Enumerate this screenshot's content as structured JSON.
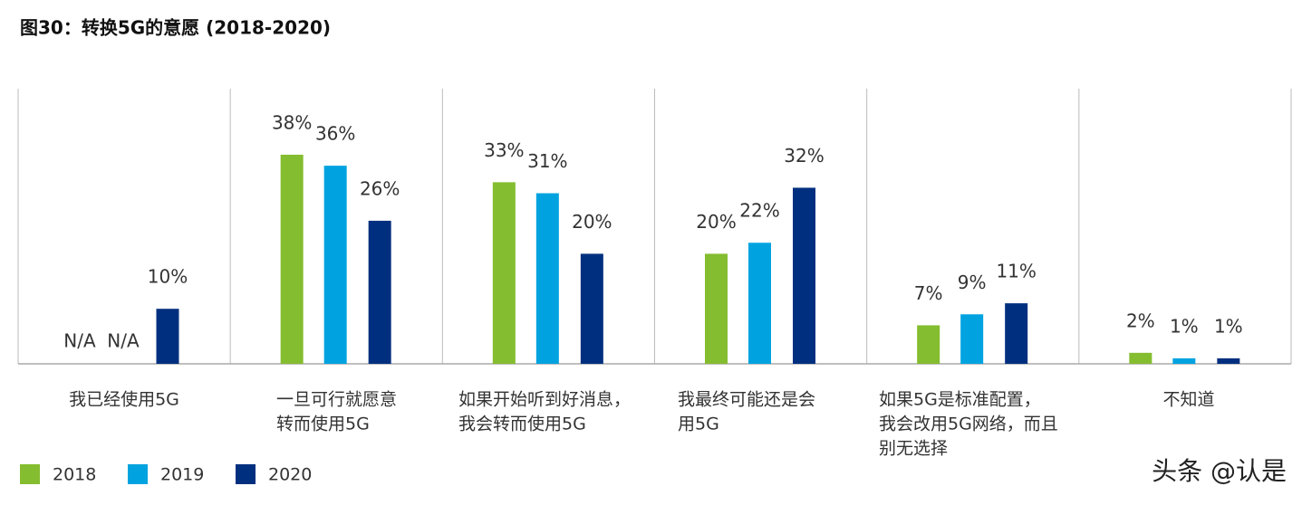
{
  "chart_data": {
    "type": "bar",
    "title": "图30：转换5G的意愿 (2018-2020)",
    "categories": [
      [
        "我已经使用5G"
      ],
      [
        "一旦可行就愿意",
        "转而使用5G"
      ],
      [
        "如果开始听到好消息，",
        "我会转而使用5G"
      ],
      [
        "我最终可能还是会",
        "用5G"
      ],
      [
        "如果5G是标准配置，",
        "我会改用5G网络，而且",
        "别无选择"
      ],
      [
        "不知道"
      ]
    ],
    "series": [
      {
        "name": "2018",
        "color": "#84bd2f",
        "values": [
          null,
          38,
          33,
          20,
          7,
          2
        ],
        "value_labels": [
          "N/A",
          "38%",
          "33%",
          "20%",
          "7%",
          "2%"
        ]
      },
      {
        "name": "2019",
        "color": "#00a3e0",
        "values": [
          null,
          36,
          31,
          22,
          9,
          1
        ],
        "value_labels": [
          "N/A",
          "36%",
          "31%",
          "22%",
          "9%",
          "1%"
        ]
      },
      {
        "name": "2020",
        "color": "#012f7f",
        "values": [
          10,
          26,
          20,
          32,
          11,
          1
        ],
        "value_labels": [
          "10%",
          "26%",
          "20%",
          "32%",
          "11%",
          "1%"
        ]
      }
    ],
    "ylim": [
      0,
      50
    ],
    "watermark": "头条 @认是"
  }
}
